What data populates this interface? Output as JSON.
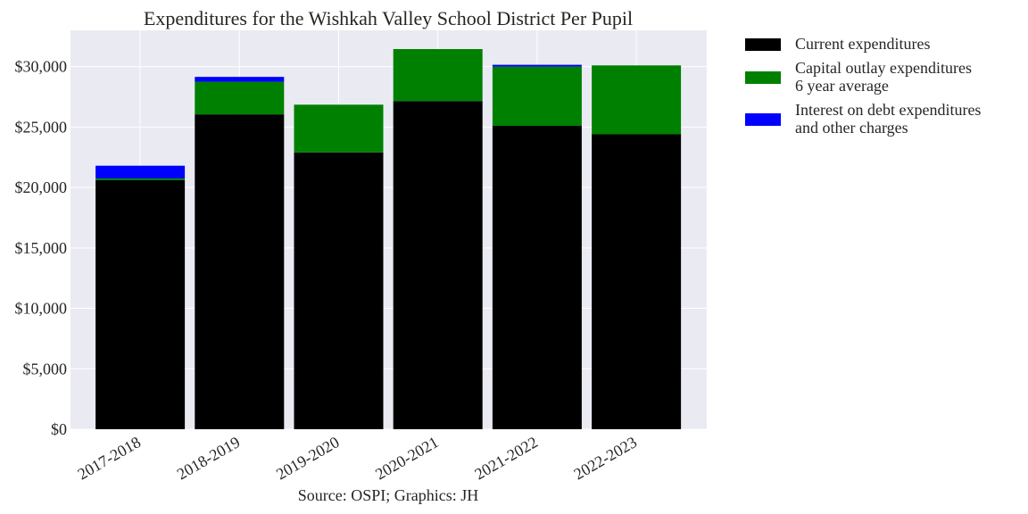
{
  "chart_data": {
    "type": "bar",
    "stacked": true,
    "title": "Expenditures for the Wishkah Valley School District Per Pupil",
    "caption": "Source: OSPI; Graphics: JH",
    "categories": [
      "2017-2018",
      "2018-2019",
      "2019-2020",
      "2020-2021",
      "2021-2022",
      "2022-2023"
    ],
    "series": [
      {
        "name": "Current expenditures",
        "color": "#000000",
        "values": [
          20600,
          26050,
          22900,
          27150,
          25100,
          24400
        ]
      },
      {
        "name": "Capital outlay expenditures\n6 year average",
        "color": "#008000",
        "values": [
          150,
          2700,
          3950,
          4300,
          4900,
          5700
        ]
      },
      {
        "name": "Interest on debt expenditures\nand other charges",
        "color": "#0000ff",
        "values": [
          1050,
          400,
          0,
          0,
          150,
          0
        ]
      }
    ],
    "yticks": [
      0,
      5000,
      10000,
      15000,
      20000,
      25000,
      30000
    ],
    "ytick_labels": [
      "$0",
      "$5,000",
      "$10,000",
      "$15,000",
      "$20,000",
      "$25,000",
      "$30,000"
    ],
    "ylim": [
      0,
      33000
    ],
    "grid": true,
    "legend_position": "outside-right-top",
    "background": "#eaeaf2"
  }
}
